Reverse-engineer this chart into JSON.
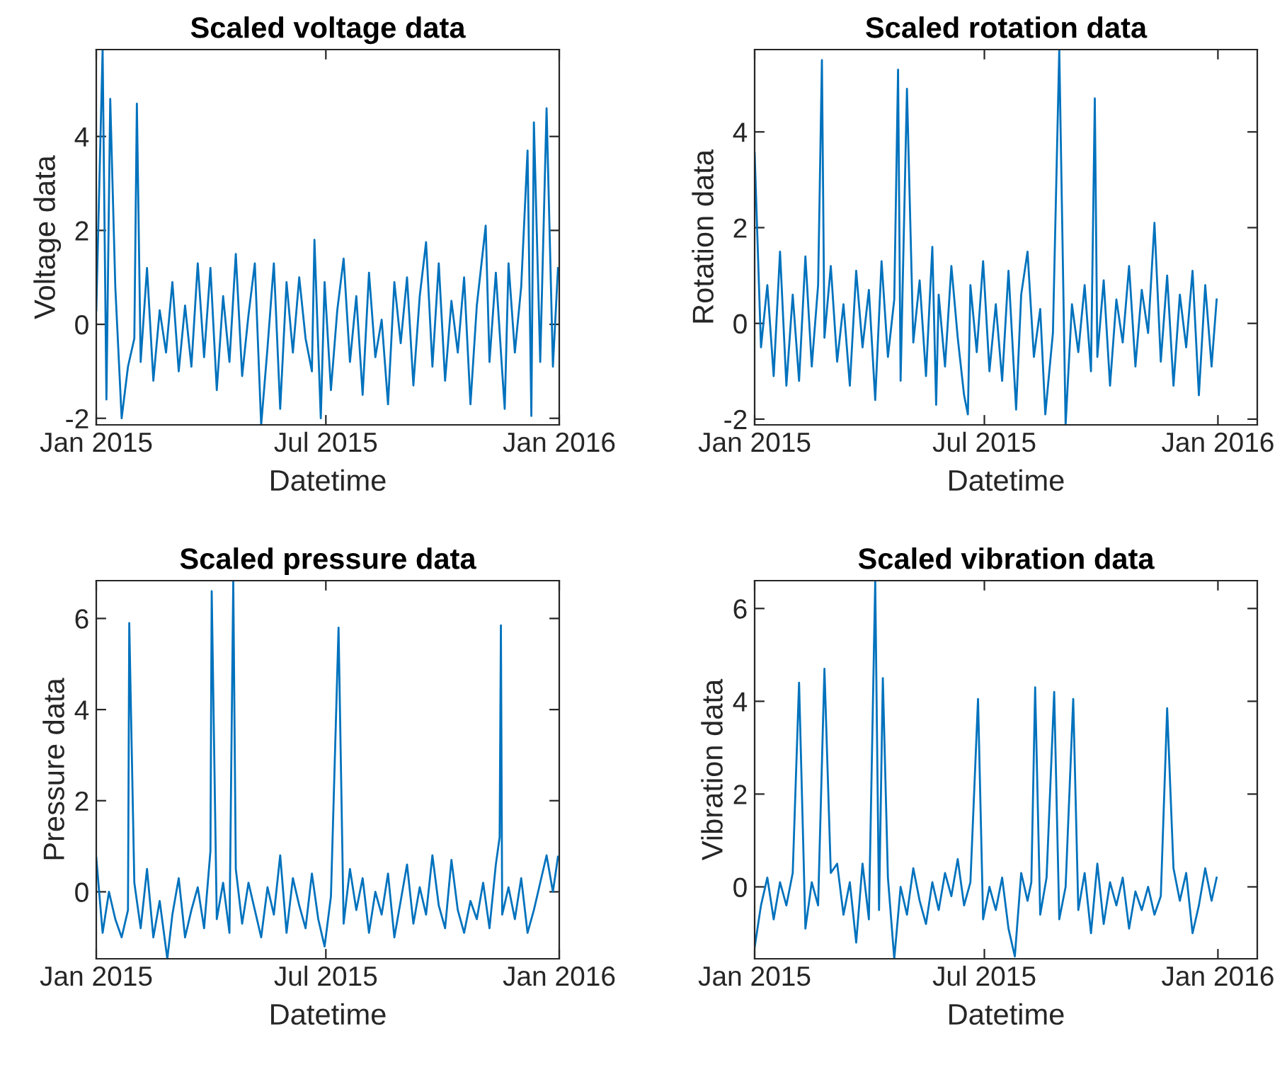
{
  "chart_data": [
    {
      "type": "line",
      "title": "Scaled voltage data",
      "xlabel": "Datetime",
      "ylabel": "Voltage data",
      "xlim": [
        "2015-01-01",
        "2016-01-01"
      ],
      "ylim": [
        -2.14,
        5.85
      ],
      "xticks": [
        {
          "value": "2015-01-01",
          "label": "Jan 2015"
        },
        {
          "value": "2015-07-01",
          "label": "Jul 2015"
        },
        {
          "value": "2016-01-01",
          "label": "Jan 2016"
        }
      ],
      "yticks": [
        -2,
        0,
        2,
        4
      ],
      "grid": false,
      "line_style": "solid",
      "series": [
        {
          "color": "#0072bd",
          "x": [
            "2015-01-01",
            "2015-01-06",
            "2015-01-09",
            "2015-01-12",
            "2015-01-16",
            "2015-01-21",
            "2015-01-26",
            "2015-01-31",
            "2015-02-02",
            "2015-02-05",
            "2015-02-10",
            "2015-02-15",
            "2015-02-20",
            "2015-02-25",
            "2015-03-02",
            "2015-03-07",
            "2015-03-12",
            "2015-03-17",
            "2015-03-22",
            "2015-03-27",
            "2015-04-01",
            "2015-04-06",
            "2015-04-11",
            "2015-04-16",
            "2015-04-21",
            "2015-04-26",
            "2015-05-01",
            "2015-05-06",
            "2015-05-11",
            "2015-05-16",
            "2015-05-21",
            "2015-05-26",
            "2015-05-31",
            "2015-06-05",
            "2015-06-10",
            "2015-06-15",
            "2015-06-20",
            "2015-06-22",
            "2015-06-25",
            "2015-06-27",
            "2015-06-30",
            "2015-07-05",
            "2015-07-10",
            "2015-07-15",
            "2015-07-20",
            "2015-07-25",
            "2015-07-30",
            "2015-08-04",
            "2015-08-09",
            "2015-08-14",
            "2015-08-19",
            "2015-08-24",
            "2015-08-29",
            "2015-09-03",
            "2015-09-08",
            "2015-09-13",
            "2015-09-18",
            "2015-09-23",
            "2015-09-28",
            "2015-10-03",
            "2015-10-08",
            "2015-10-13",
            "2015-10-18",
            "2015-10-23",
            "2015-10-28",
            "2015-11-04",
            "2015-11-07",
            "2015-11-12",
            "2015-11-17",
            "2015-11-19",
            "2015-11-22",
            "2015-11-27",
            "2015-12-02",
            "2015-12-07",
            "2015-12-10",
            "2015-12-12",
            "2015-12-17",
            "2015-12-22",
            "2015-12-27",
            "2015-12-31"
          ],
          "values": [
            0.3,
            5.85,
            -1.6,
            4.8,
            0.8,
            -2.0,
            -0.9,
            -0.3,
            4.7,
            -0.8,
            1.2,
            -1.2,
            0.3,
            -0.6,
            0.9,
            -1.0,
            0.4,
            -0.9,
            1.3,
            -0.7,
            1.2,
            -1.4,
            0.6,
            -0.8,
            1.5,
            -1.1,
            0.2,
            1.3,
            -2.14,
            -0.5,
            1.3,
            -1.8,
            0.9,
            -0.6,
            1.0,
            -0.3,
            -1.0,
            1.8,
            -0.5,
            -2.0,
            0.9,
            -1.4,
            0.3,
            1.4,
            -0.8,
            0.6,
            -1.5,
            1.1,
            -0.7,
            0.1,
            -1.7,
            0.9,
            -0.4,
            1.0,
            -1.3,
            0.6,
            1.75,
            -0.9,
            1.3,
            -1.2,
            0.5,
            -0.6,
            1.0,
            -1.7,
            0.4,
            2.1,
            -0.8,
            1.1,
            -1.0,
            -1.8,
            1.3,
            -0.6,
            0.8,
            3.7,
            -1.95,
            4.3,
            -0.8,
            4.6,
            -0.9,
            1.2
          ]
        }
      ]
    },
    {
      "type": "line",
      "title": "Scaled rotation data",
      "xlabel": "Datetime",
      "ylabel": "Rotation data",
      "xlim": [
        "2015-01-01",
        "2016-02-01"
      ],
      "ylim": [
        -2.12,
        5.72
      ],
      "xticks": [
        {
          "value": "2015-01-01",
          "label": "Jan 2015"
        },
        {
          "value": "2015-07-01",
          "label": "Jul 2015"
        },
        {
          "value": "2016-01-01",
          "label": "Jan 2016"
        }
      ],
      "yticks": [
        -2,
        0,
        2,
        4
      ],
      "grid": false,
      "line_style": "solid",
      "series": [
        {
          "color": "#0072bd",
          "x": [
            "2015-01-01",
            "2015-01-06",
            "2015-01-11",
            "2015-01-16",
            "2015-01-21",
            "2015-01-26",
            "2015-01-31",
            "2015-02-05",
            "2015-02-10",
            "2015-02-15",
            "2015-02-20",
            "2015-02-23",
            "2015-02-25",
            "2015-03-02",
            "2015-03-07",
            "2015-03-12",
            "2015-03-17",
            "2015-03-22",
            "2015-03-27",
            "2015-04-01",
            "2015-04-06",
            "2015-04-11",
            "2015-04-16",
            "2015-04-21",
            "2015-04-24",
            "2015-04-26",
            "2015-05-01",
            "2015-05-06",
            "2015-05-11",
            "2015-05-16",
            "2015-05-21",
            "2015-05-24",
            "2015-05-26",
            "2015-05-31",
            "2015-06-05",
            "2015-06-10",
            "2015-06-15",
            "2015-06-18",
            "2015-06-20",
            "2015-06-25",
            "2015-06-30",
            "2015-07-05",
            "2015-07-10",
            "2015-07-15",
            "2015-07-20",
            "2015-07-26",
            "2015-07-30",
            "2015-08-04",
            "2015-08-09",
            "2015-08-14",
            "2015-08-18",
            "2015-08-24",
            "2015-08-29",
            "2015-09-03",
            "2015-09-08",
            "2015-09-13",
            "2015-09-18",
            "2015-09-23",
            "2015-09-26",
            "2015-09-28",
            "2015-10-03",
            "2015-10-08",
            "2015-10-13",
            "2015-10-18",
            "2015-10-23",
            "2015-10-28",
            "2015-11-02",
            "2015-11-07",
            "2015-11-12",
            "2015-11-17",
            "2015-11-22",
            "2015-11-27",
            "2015-12-02",
            "2015-12-07",
            "2015-12-12",
            "2015-12-17",
            "2015-12-22",
            "2015-12-27",
            "2015-12-31"
          ],
          "values": [
            3.56,
            -0.5,
            0.8,
            -1.1,
            1.5,
            -1.3,
            0.6,
            -1.2,
            1.4,
            -0.9,
            0.8,
            5.5,
            -0.3,
            1.2,
            -0.8,
            0.4,
            -1.3,
            1.1,
            -0.5,
            0.7,
            -1.6,
            1.3,
            -0.7,
            0.5,
            5.3,
            -1.2,
            4.9,
            -0.4,
            0.9,
            -1.1,
            1.6,
            -1.7,
            0.6,
            -0.9,
            1.2,
            -0.3,
            -1.5,
            -1.9,
            0.8,
            -0.6,
            1.3,
            -1.0,
            0.4,
            -1.2,
            1.1,
            -1.8,
            0.6,
            1.5,
            -0.7,
            0.3,
            -1.9,
            -0.2,
            5.72,
            -2.12,
            0.4,
            -0.6,
            0.8,
            -1.0,
            4.7,
            -0.7,
            0.9,
            -1.3,
            0.5,
            -0.4,
            1.2,
            -0.9,
            0.7,
            -0.2,
            2.1,
            -0.8,
            1.0,
            -1.3,
            0.6,
            -0.5,
            1.1,
            -1.5,
            0.8,
            -0.9,
            0.5
          ]
        }
      ]
    },
    {
      "type": "line",
      "title": "Scaled pressure data",
      "xlabel": "Datetime",
      "ylabel": "Pressure data",
      "xlim": [
        "2015-01-01",
        "2016-01-01"
      ],
      "ylim": [
        -1.47,
        6.83
      ],
      "xticks": [
        {
          "value": "2015-01-01",
          "label": "Jan 2015"
        },
        {
          "value": "2015-07-01",
          "label": "Jul 2015"
        },
        {
          "value": "2016-01-01",
          "label": "Jan 2016"
        }
      ],
      "yticks": [
        0,
        2,
        4,
        6
      ],
      "grid": false,
      "line_style": "solid",
      "series": [
        {
          "color": "#0072bd",
          "x": [
            "2015-01-01",
            "2015-01-06",
            "2015-01-11",
            "2015-01-16",
            "2015-01-21",
            "2015-01-26",
            "2015-01-27",
            "2015-01-31",
            "2015-02-05",
            "2015-02-10",
            "2015-02-15",
            "2015-02-20",
            "2015-02-26",
            "2015-03-02",
            "2015-03-07",
            "2015-03-12",
            "2015-03-17",
            "2015-03-22",
            "2015-03-27",
            "2015-04-01",
            "2015-04-02",
            "2015-04-06",
            "2015-04-11",
            "2015-04-16",
            "2015-04-19",
            "2015-04-21",
            "2015-04-26",
            "2015-05-01",
            "2015-05-06",
            "2015-05-11",
            "2015-05-16",
            "2015-05-21",
            "2015-05-26",
            "2015-05-31",
            "2015-06-05",
            "2015-06-10",
            "2015-06-15",
            "2015-06-20",
            "2015-06-25",
            "2015-06-30",
            "2015-07-05",
            "2015-07-11",
            "2015-07-15",
            "2015-07-20",
            "2015-07-25",
            "2015-07-30",
            "2015-08-04",
            "2015-08-09",
            "2015-08-14",
            "2015-08-19",
            "2015-08-24",
            "2015-08-29",
            "2015-09-03",
            "2015-09-08",
            "2015-09-13",
            "2015-09-18",
            "2015-09-23",
            "2015-09-28",
            "2015-10-03",
            "2015-10-08",
            "2015-10-13",
            "2015-10-18",
            "2015-10-23",
            "2015-10-28",
            "2015-11-02",
            "2015-11-07",
            "2015-11-12",
            "2015-11-15",
            "2015-11-16",
            "2015-11-17",
            "2015-11-22",
            "2015-11-27",
            "2015-12-02",
            "2015-12-07",
            "2015-12-12",
            "2015-12-17",
            "2015-12-22",
            "2015-12-27",
            "2015-12-31"
          ],
          "values": [
            0.75,
            -0.9,
            0.0,
            -0.6,
            -1.0,
            -0.4,
            5.9,
            0.2,
            -0.8,
            0.5,
            -1.0,
            -0.2,
            -1.47,
            -0.5,
            0.3,
            -1.0,
            -0.4,
            0.1,
            -0.8,
            0.9,
            6.6,
            -0.6,
            0.2,
            -0.9,
            6.83,
            0.5,
            -0.7,
            0.2,
            -0.4,
            -1.0,
            0.1,
            -0.5,
            0.8,
            -0.9,
            0.3,
            -0.3,
            -0.8,
            0.4,
            -0.6,
            -1.2,
            -0.1,
            5.8,
            -0.7,
            0.5,
            -0.4,
            0.3,
            -0.9,
            0.0,
            -0.5,
            0.4,
            -1.0,
            -0.2,
            0.6,
            -0.7,
            0.1,
            -0.5,
            0.8,
            -0.3,
            -0.8,
            0.7,
            -0.4,
            -0.9,
            -0.2,
            -0.6,
            0.2,
            -0.8,
            0.6,
            1.2,
            5.85,
            -0.5,
            0.1,
            -0.6,
            0.3,
            -0.9,
            -0.4,
            0.2,
            0.8,
            0.0,
            0.77
          ]
        }
      ]
    },
    {
      "type": "line",
      "title": "Scaled vibration data",
      "xlabel": "Datetime",
      "ylabel": "Vibration data",
      "xlim": [
        "2015-01-01",
        "2016-02-01"
      ],
      "ylim": [
        -1.55,
        6.6
      ],
      "xticks": [
        {
          "value": "2015-01-01",
          "label": "Jan 2015"
        },
        {
          "value": "2015-07-01",
          "label": "Jul 2015"
        },
        {
          "value": "2016-01-01",
          "label": "Jan 2016"
        }
      ],
      "yticks": [
        0,
        2,
        4,
        6
      ],
      "grid": false,
      "line_style": "solid",
      "series": [
        {
          "color": "#0072bd",
          "x": [
            "2015-01-01",
            "2015-01-06",
            "2015-01-11",
            "2015-01-16",
            "2015-01-21",
            "2015-01-26",
            "2015-01-31",
            "2015-02-05",
            "2015-02-10",
            "2015-02-15",
            "2015-02-20",
            "2015-02-25",
            "2015-03-02",
            "2015-03-07",
            "2015-03-12",
            "2015-03-17",
            "2015-03-22",
            "2015-03-27",
            "2015-04-01",
            "2015-04-06",
            "2015-04-09",
            "2015-04-12",
            "2015-04-16",
            "2015-04-21",
            "2015-04-26",
            "2015-05-01",
            "2015-05-06",
            "2015-05-11",
            "2015-05-16",
            "2015-05-21",
            "2015-05-26",
            "2015-05-31",
            "2015-06-05",
            "2015-06-10",
            "2015-06-15",
            "2015-06-20",
            "2015-06-26",
            "2015-06-30",
            "2015-07-05",
            "2015-07-10",
            "2015-07-15",
            "2015-07-20",
            "2015-07-25",
            "2015-07-30",
            "2015-08-04",
            "2015-08-07",
            "2015-08-10",
            "2015-08-14",
            "2015-08-19",
            "2015-08-25",
            "2015-08-29",
            "2015-09-03",
            "2015-09-09",
            "2015-09-13",
            "2015-09-18",
            "2015-09-23",
            "2015-09-28",
            "2015-10-03",
            "2015-10-08",
            "2015-10-13",
            "2015-10-18",
            "2015-10-23",
            "2015-10-28",
            "2015-11-02",
            "2015-11-07",
            "2015-11-12",
            "2015-11-17",
            "2015-11-22",
            "2015-11-27",
            "2015-12-02",
            "2015-12-07",
            "2015-12-12",
            "2015-12-17",
            "2015-12-22",
            "2015-12-27",
            "2015-12-31"
          ],
          "values": [
            -1.3,
            -0.4,
            0.2,
            -0.7,
            0.1,
            -0.4,
            0.3,
            4.4,
            -0.9,
            0.1,
            -0.4,
            4.7,
            0.3,
            0.5,
            -0.6,
            0.1,
            -1.2,
            0.5,
            -0.7,
            6.6,
            -0.5,
            4.5,
            0.2,
            -1.55,
            0.0,
            -0.6,
            0.4,
            -0.3,
            -0.8,
            0.1,
            -0.5,
            0.3,
            -0.2,
            0.6,
            -0.4,
            0.1,
            4.05,
            -0.7,
            0.0,
            -0.5,
            0.2,
            -0.9,
            -1.5,
            0.3,
            -0.3,
            0.1,
            4.3,
            -0.6,
            0.2,
            4.2,
            -0.7,
            0.0,
            4.05,
            -0.5,
            0.3,
            -1.0,
            0.5,
            -0.8,
            0.1,
            -0.4,
            0.2,
            -0.9,
            -0.1,
            -0.5,
            0.0,
            -0.6,
            -0.2,
            3.85,
            0.4,
            -0.3,
            0.3,
            -1.0,
            -0.4,
            0.4,
            -0.3,
            0.2
          ]
        }
      ]
    }
  ]
}
